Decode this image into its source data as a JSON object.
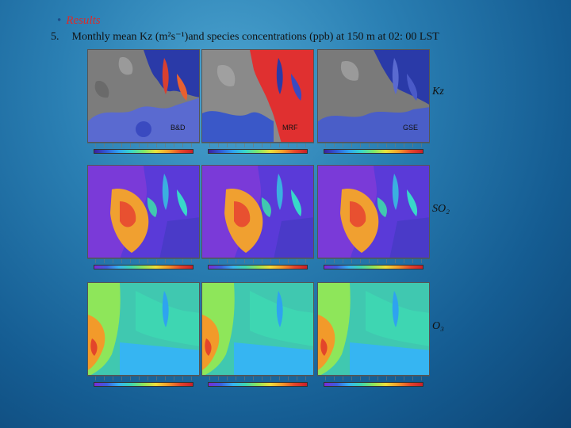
{
  "bullet": {
    "marker": "•",
    "text": "Results"
  },
  "heading": {
    "number": "5.",
    "text": "Monthly mean  Kz  (m²s⁻¹)and species concentrations (ppb)  at  150 m at  02: 00 LST"
  },
  "rows": [
    {
      "label": "Kz",
      "colorbar": "kz"
    },
    {
      "label": "SO₂",
      "colorbar": "so2"
    },
    {
      "label": "O₃",
      "colorbar": "o3"
    }
  ],
  "schemes": [
    "B&D",
    "MRF",
    "GSE"
  ],
  "colors": {
    "accent_red": "#d92c2c",
    "kz_sea": "#1b2fa8",
    "kz_land": "#4a66d0",
    "so2_sea": "#5a2fd0",
    "so2_land": "#f0a030",
    "o3_sea": "#2fa0e0",
    "o3_land": "#40c8b0"
  }
}
